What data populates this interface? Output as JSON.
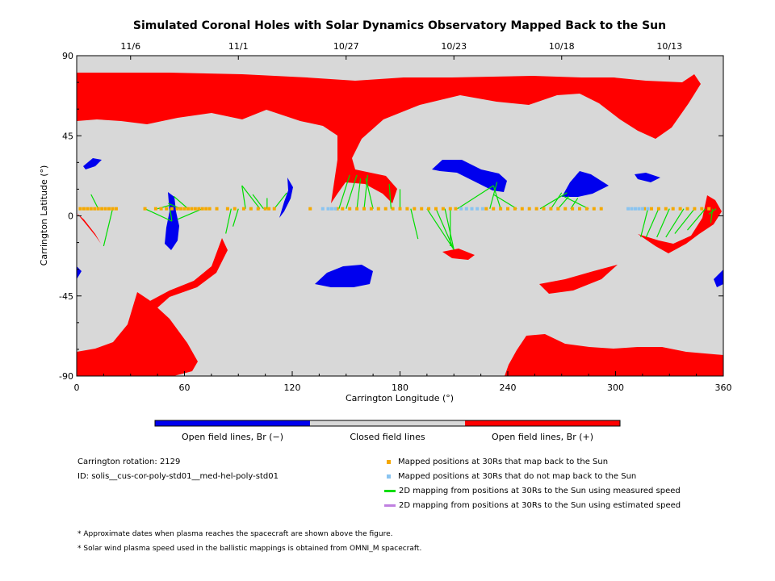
{
  "chart_data": {
    "type": "map",
    "title": "Simulated Coronal Holes with Solar Dynamics Observatory Mapped Back to the Sun",
    "xlabel": "Carrington Longitude (°)",
    "ylabel": "Carrington Latitude (°)",
    "xlim": [
      0,
      360
    ],
    "ylim": [
      -90,
      90
    ],
    "x_ticks": [
      "0",
      "60",
      "120",
      "180",
      "240",
      "300",
      "360"
    ],
    "y_ticks": [
      "90",
      "45",
      "0",
      "-45",
      "-90"
    ],
    "top_axis_dates": [
      {
        "label": "11/6",
        "lon": 30
      },
      {
        "label": "11/1",
        "lon": 90
      },
      {
        "label": "10/27",
        "lon": 150
      },
      {
        "label": "10/23",
        "lon": 210
      },
      {
        "label": "10/18",
        "lon": 270
      },
      {
        "label": "10/13",
        "lon": 330
      }
    ],
    "colors": {
      "closed": "#d8d8d8",
      "open_negative": "#0000ee",
      "open_positive": "#ff0000",
      "mapped": "#f5a800",
      "unmapped": "#8ac4f0",
      "measured": "#00dd00",
      "estimated": "#c080e0"
    },
    "mapped_longitudes": [
      2,
      4,
      6,
      8,
      10,
      12,
      14,
      16,
      18,
      20,
      22,
      38,
      44,
      47,
      50,
      53,
      56,
      58,
      60,
      62,
      64,
      66,
      68,
      70,
      72,
      74,
      78,
      84,
      88,
      93,
      97,
      101,
      105,
      107,
      110,
      130,
      145,
      148,
      152,
      156,
      160,
      164,
      168,
      172,
      176,
      180,
      184,
      188,
      192,
      196,
      200,
      204,
      208,
      211,
      228,
      232,
      236,
      240,
      244,
      248,
      252,
      256,
      260,
      264,
      268,
      272,
      276,
      280,
      284,
      288,
      292,
      316,
      320,
      324,
      328,
      332,
      336,
      340,
      344,
      348,
      352
    ],
    "unmapped_longitudes": [
      137,
      140,
      142,
      144,
      214,
      217,
      220,
      223,
      226,
      307,
      309,
      311,
      313,
      315,
      318
    ],
    "measured_mappings": [
      {
        "from": [
          12,
          4
        ],
        "to": [
          8,
          12
        ]
      },
      {
        "from": [
          20,
          4
        ],
        "to": [
          15,
          -17
        ]
      },
      {
        "from": [
          38,
          4
        ],
        "to": [
          53,
          -3
        ]
      },
      {
        "from": [
          45,
          4
        ],
        "to": [
          52,
          6
        ]
      },
      {
        "from": [
          52,
          4
        ],
        "to": [
          53,
          -3
        ]
      },
      {
        "from": [
          58,
          4
        ],
        "to": [
          51,
          7
        ]
      },
      {
        "from": [
          62,
          4
        ],
        "to": [
          54,
          11
        ]
      },
      {
        "from": [
          70,
          4
        ],
        "to": [
          56,
          -2
        ]
      },
      {
        "from": [
          86,
          4
        ],
        "to": [
          83,
          -10
        ]
      },
      {
        "from": [
          90,
          4
        ],
        "to": [
          87,
          -6
        ]
      },
      {
        "from": [
          94,
          4
        ],
        "to": [
          92,
          17
        ]
      },
      {
        "from": [
          102,
          4
        ],
        "to": [
          92,
          17
        ]
      },
      {
        "from": [
          104,
          4
        ],
        "to": [
          98,
          12
        ]
      },
      {
        "from": [
          106,
          4
        ],
        "to": [
          106,
          10
        ]
      },
      {
        "from": [
          110,
          4
        ],
        "to": [
          117,
          13
        ]
      },
      {
        "from": [
          146,
          4
        ],
        "to": [
          152,
          23
        ]
      },
      {
        "from": [
          150,
          4
        ],
        "to": [
          156,
          23
        ]
      },
      {
        "from": [
          156,
          4
        ],
        "to": [
          158,
          21
        ]
      },
      {
        "from": [
          160,
          4
        ],
        "to": [
          162,
          23
        ]
      },
      {
        "from": [
          165,
          4
        ],
        "to": [
          161,
          21
        ]
      },
      {
        "from": [
          175,
          4
        ],
        "to": [
          174,
          18
        ]
      },
      {
        "from": [
          180,
          4
        ],
        "to": [
          180,
          15
        ]
      },
      {
        "from": [
          186,
          4
        ],
        "to": [
          190,
          -13
        ]
      },
      {
        "from": [
          195,
          4
        ],
        "to": [
          210,
          -19
        ]
      },
      {
        "from": [
          200,
          4
        ],
        "to": [
          210,
          -19
        ]
      },
      {
        "from": [
          205,
          4
        ],
        "to": [
          210,
          -19
        ]
      },
      {
        "from": [
          208,
          4
        ],
        "to": [
          208,
          -17
        ]
      },
      {
        "from": [
          212,
          4
        ],
        "to": [
          232,
          17
        ]
      },
      {
        "from": [
          230,
          4
        ],
        "to": [
          234,
          19
        ]
      },
      {
        "from": [
          236,
          4
        ],
        "to": [
          232,
          17
        ]
      },
      {
        "from": [
          245,
          4
        ],
        "to": [
          232,
          12
        ]
      },
      {
        "from": [
          258,
          4
        ],
        "to": [
          273,
          13
        ]
      },
      {
        "from": [
          264,
          4
        ],
        "to": [
          270,
          13
        ]
      },
      {
        "from": [
          268,
          4
        ],
        "to": [
          274,
          11
        ]
      },
      {
        "from": [
          275,
          4
        ],
        "to": [
          279,
          10
        ]
      },
      {
        "from": [
          285,
          4
        ],
        "to": [
          271,
          11
        ]
      },
      {
        "from": [
          318,
          4
        ],
        "to": [
          314,
          -12
        ]
      },
      {
        "from": [
          324,
          4
        ],
        "to": [
          317,
          -12
        ]
      },
      {
        "from": [
          330,
          4
        ],
        "to": [
          323,
          -12
        ]
      },
      {
        "from": [
          338,
          4
        ],
        "to": [
          328,
          -12
        ]
      },
      {
        "from": [
          344,
          4
        ],
        "to": [
          333,
          -10
        ]
      },
      {
        "from": [
          350,
          4
        ],
        "to": [
          340,
          -8
        ]
      },
      {
        "from": [
          354,
          4
        ],
        "to": [
          353,
          -4
        ]
      },
      {
        "from": [
          356,
          4
        ],
        "to": [
          352,
          1
        ]
      }
    ],
    "colorbar": {
      "labels": [
        "Open field lines, Br (−)",
        "Closed field lines",
        "Open field lines, Br (+)"
      ]
    },
    "legend": [
      {
        "label": "Mapped positions at 30Rs that map back to the Sun",
        "color": "#f5a800",
        "marker": "square"
      },
      {
        "label": "Mapped positions at 30Rs that do not map back to the Sun",
        "color": "#8ac4f0",
        "marker": "square"
      },
      {
        "label": "2D mapping from positions at 30Rs to the Sun using measured speed",
        "color": "#00dd00",
        "marker": "line"
      },
      {
        "label": "2D mapping from positions at 30Rs to the Sun using estimated speed",
        "color": "#c080e0",
        "marker": "line"
      }
    ],
    "legend_position": "bottom-right"
  },
  "info": {
    "rotation": "Carrington rotation: 2129",
    "id": "ID: solis__cus-cor-poly-std01__med-hel-poly-std01"
  },
  "footnotes": [
    "* Approximate dates when plasma reaches the spacecraft are shown above the figure.",
    "* Solar wind plasma speed used in the ballistic mappings is obtained from OMNI_M spacecraft."
  ]
}
